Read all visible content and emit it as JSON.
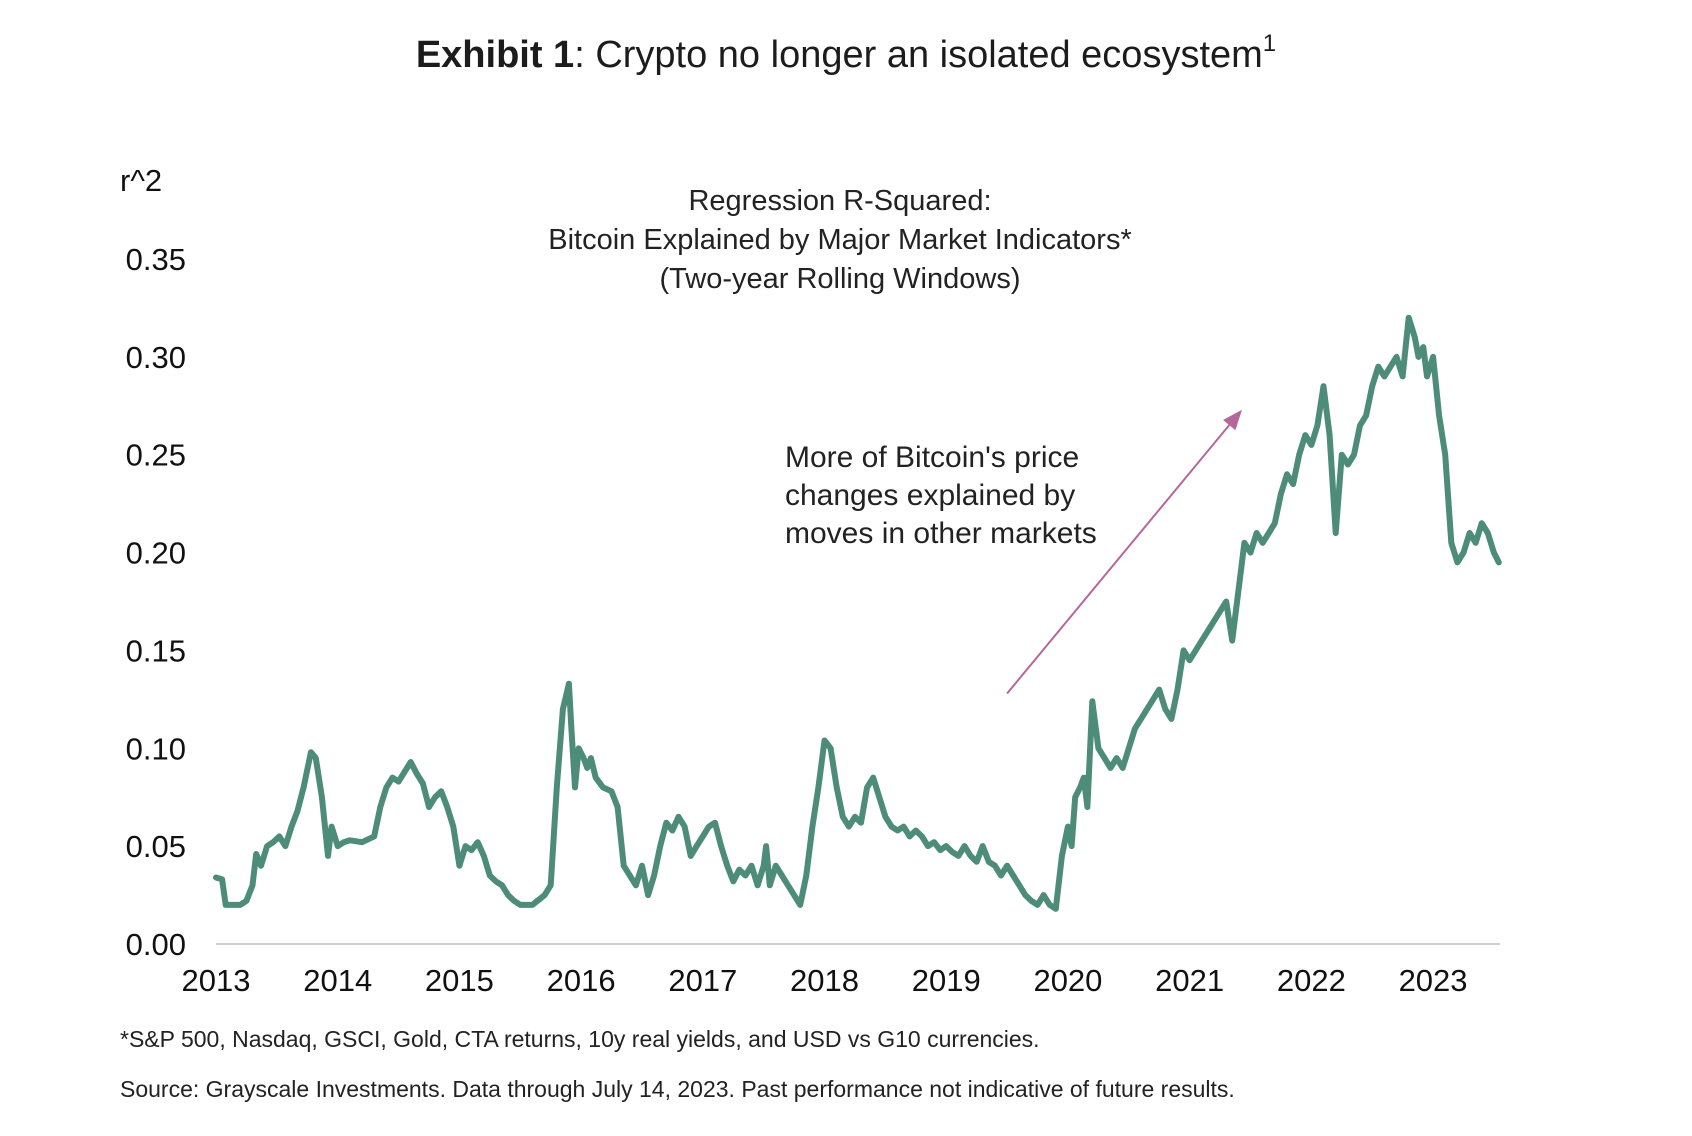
{
  "exhibit": {
    "label": "Exhibit 1",
    "separator": ":",
    "title": " Crypto no longer an isolated ecosystem",
    "footnote_mark": "1"
  },
  "footnotes": {
    "indicators": "*S&P 500, Nasdaq, GSCI, Gold, CTA returns, 10y real yields, and USD vs G10 currencies.",
    "source": "Source: Grayscale Investments. Data through July 14, 2023. Past performance not indicative of future results."
  },
  "colors": {
    "line": "#4e8c7a",
    "arrow": "#b5679a",
    "axis": "#cfcfcf",
    "text": "#222222"
  },
  "chart_data": {
    "type": "line",
    "title_lines": [
      "Regression R-Squared:",
      "Bitcoin Explained by Major Market Indicators*",
      "(Two-year Rolling Windows)"
    ],
    "ylabel": "r^2",
    "xlabel": "",
    "ylim": [
      0,
      0.35
    ],
    "yticks": [
      "0.00",
      "0.05",
      "0.10",
      "0.15",
      "0.20",
      "0.25",
      "0.30",
      "0.35"
    ],
    "yticks_values": [
      0,
      0.05,
      0.1,
      0.15,
      0.2,
      0.25,
      0.3,
      0.35
    ],
    "xticks": [
      "2013",
      "2014",
      "2015",
      "2016",
      "2017",
      "2018",
      "2019",
      "2020",
      "2021",
      "2022",
      "2023"
    ],
    "xticks_values": [
      2013,
      2014,
      2015,
      2016,
      2017,
      2018,
      2019,
      2020,
      2021,
      2022,
      2023
    ],
    "xlim": [
      2013,
      2023.55
    ],
    "grid": false,
    "annotation": {
      "lines": [
        "More of Bitcoin's price",
        "changes explained by",
        "moves in other markets"
      ],
      "arrow_from": [
        2019.5,
        0.128
      ],
      "arrow_to": [
        2021.43,
        0.273
      ]
    },
    "series": [
      {
        "x": [
          2013.0,
          2013.05,
          2013.08,
          2013.15,
          2013.2,
          2013.25,
          2013.3,
          2013.33,
          2013.37,
          2013.42,
          2013.47,
          2013.52,
          2013.57,
          2013.62,
          2013.67,
          2013.72,
          2013.78,
          2013.82,
          2013.87,
          2013.92,
          2013.95,
          2014.0,
          2014.05,
          2014.1,
          2014.2,
          2014.3,
          2014.35,
          2014.4,
          2014.45,
          2014.5,
          2014.55,
          2014.6,
          2014.65,
          2014.7,
          2014.75,
          2014.8,
          2014.85,
          2014.9,
          2014.95,
          2015.0,
          2015.05,
          2015.1,
          2015.15,
          2015.2,
          2015.25,
          2015.3,
          2015.35,
          2015.4,
          2015.45,
          2015.5,
          2015.6,
          2015.7,
          2015.75,
          2015.8,
          2015.85,
          2015.9,
          2015.92,
          2015.95,
          2015.98,
          2016.02,
          2016.05,
          2016.08,
          2016.12,
          2016.18,
          2016.25,
          2016.3,
          2016.35,
          2016.4,
          2016.45,
          2016.5,
          2016.55,
          2016.6,
          2016.65,
          2016.7,
          2016.75,
          2016.8,
          2016.85,
          2016.9,
          2016.95,
          2017.0,
          2017.05,
          2017.1,
          2017.15,
          2017.2,
          2017.25,
          2017.3,
          2017.35,
          2017.4,
          2017.45,
          2017.5,
          2017.52,
          2017.55,
          2017.6,
          2017.65,
          2017.7,
          2017.75,
          2017.8,
          2017.85,
          2017.9,
          2017.95,
          2018.0,
          2018.05,
          2018.1,
          2018.15,
          2018.2,
          2018.25,
          2018.3,
          2018.35,
          2018.4,
          2018.45,
          2018.5,
          2018.55,
          2018.6,
          2018.65,
          2018.7,
          2018.75,
          2018.8,
          2018.85,
          2018.9,
          2018.95,
          2019.0,
          2019.05,
          2019.1,
          2019.15,
          2019.2,
          2019.25,
          2019.3,
          2019.35,
          2019.4,
          2019.45,
          2019.5,
          2019.55,
          2019.6,
          2019.65,
          2019.7,
          2019.75,
          2019.8,
          2019.85,
          2019.9,
          2019.95,
          2020.0,
          2020.03,
          2020.06,
          2020.1,
          2020.13,
          2020.16,
          2020.2,
          2020.25,
          2020.3,
          2020.35,
          2020.4,
          2020.45,
          2020.5,
          2020.55,
          2020.6,
          2020.65,
          2020.7,
          2020.75,
          2020.8,
          2020.85,
          2020.9,
          2020.95,
          2021.0,
          2021.05,
          2021.1,
          2021.15,
          2021.2,
          2021.25,
          2021.3,
          2021.35,
          2021.4,
          2021.45,
          2021.5,
          2021.55,
          2021.6,
          2021.65,
          2021.7,
          2021.75,
          2021.8,
          2021.85,
          2021.9,
          2021.95,
          2022.0,
          2022.05,
          2022.1,
          2022.15,
          2022.2,
          2022.25,
          2022.3,
          2022.35,
          2022.4,
          2022.45,
          2022.5,
          2022.55,
          2022.6,
          2022.65,
          2022.7,
          2022.75,
          2022.8,
          2022.85,
          2022.88,
          2022.92,
          2022.95,
          2023.0,
          2023.05,
          2023.1,
          2023.15,
          2023.2,
          2023.25,
          2023.3,
          2023.35,
          2023.4,
          2023.45,
          2023.5,
          2023.54
        ],
        "y": [
          0.034,
          0.033,
          0.02,
          0.02,
          0.02,
          0.022,
          0.03,
          0.046,
          0.04,
          0.05,
          0.052,
          0.055,
          0.05,
          0.06,
          0.068,
          0.08,
          0.098,
          0.095,
          0.075,
          0.045,
          0.06,
          0.05,
          0.052,
          0.053,
          0.052,
          0.055,
          0.07,
          0.08,
          0.085,
          0.083,
          0.088,
          0.093,
          0.087,
          0.082,
          0.07,
          0.075,
          0.078,
          0.07,
          0.06,
          0.04,
          0.05,
          0.048,
          0.052,
          0.045,
          0.035,
          0.032,
          0.03,
          0.025,
          0.022,
          0.02,
          0.02,
          0.025,
          0.03,
          0.08,
          0.12,
          0.133,
          0.11,
          0.08,
          0.1,
          0.095,
          0.09,
          0.095,
          0.085,
          0.08,
          0.078,
          0.07,
          0.04,
          0.035,
          0.03,
          0.04,
          0.025,
          0.035,
          0.05,
          0.062,
          0.058,
          0.065,
          0.06,
          0.045,
          0.05,
          0.055,
          0.06,
          0.062,
          0.05,
          0.04,
          0.032,
          0.038,
          0.035,
          0.04,
          0.03,
          0.04,
          0.05,
          0.03,
          0.04,
          0.035,
          0.03,
          0.025,
          0.02,
          0.035,
          0.06,
          0.08,
          0.104,
          0.1,
          0.08,
          0.065,
          0.06,
          0.065,
          0.062,
          0.08,
          0.085,
          0.075,
          0.065,
          0.06,
          0.058,
          0.06,
          0.055,
          0.058,
          0.055,
          0.05,
          0.052,
          0.048,
          0.05,
          0.047,
          0.045,
          0.05,
          0.045,
          0.042,
          0.05,
          0.042,
          0.04,
          0.035,
          0.04,
          0.035,
          0.03,
          0.025,
          0.022,
          0.02,
          0.025,
          0.02,
          0.018,
          0.045,
          0.06,
          0.05,
          0.075,
          0.08,
          0.085,
          0.07,
          0.124,
          0.1,
          0.095,
          0.09,
          0.095,
          0.09,
          0.1,
          0.11,
          0.115,
          0.12,
          0.125,
          0.13,
          0.12,
          0.115,
          0.13,
          0.15,
          0.145,
          0.15,
          0.155,
          0.16,
          0.165,
          0.17,
          0.175,
          0.155,
          0.18,
          0.205,
          0.2,
          0.21,
          0.205,
          0.21,
          0.215,
          0.23,
          0.24,
          0.235,
          0.25,
          0.26,
          0.255,
          0.265,
          0.285,
          0.26,
          0.21,
          0.25,
          0.245,
          0.25,
          0.265,
          0.27,
          0.285,
          0.295,
          0.29,
          0.295,
          0.3,
          0.29,
          0.32,
          0.31,
          0.3,
          0.305,
          0.29,
          0.3,
          0.27,
          0.25,
          0.205,
          0.195,
          0.2,
          0.21,
          0.205,
          0.215,
          0.21,
          0.2,
          0.195
        ]
      }
    ]
  }
}
